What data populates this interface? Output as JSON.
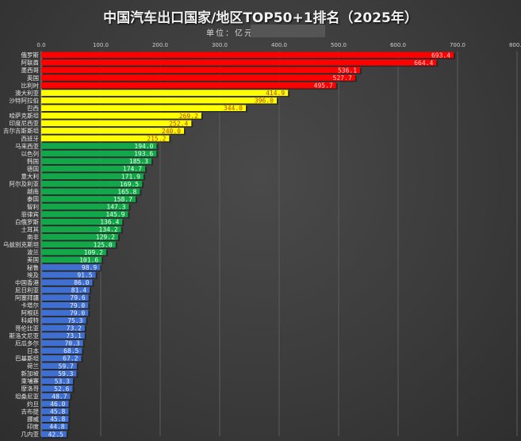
{
  "chart_data": {
    "type": "bar",
    "orientation": "horizontal",
    "title": "中国汽车出口国家/地区TOP50+1排名（2025年）",
    "subtitle": "单位：亿元",
    "xlim": [
      0,
      800
    ],
    "xticks": [
      "0.0",
      "100.0",
      "200.0",
      "300.0",
      "400.0",
      "500.0",
      "600.0",
      "700.0",
      "800.0"
    ],
    "grid": true,
    "categories": [
      "俄罗斯",
      "阿联酋",
      "墨西哥",
      "英国",
      "比利时",
      "澳大利亚",
      "沙特阿拉伯",
      "巴西",
      "哈萨克斯坦",
      "印度尼西亚",
      "吉尔吉斯斯坦",
      "西班牙",
      "马来西亚",
      "以色列",
      "韩国",
      "德国",
      "意大利",
      "阿尔及利亚",
      "越南",
      "泰国",
      "智利",
      "菲律宾",
      "白俄罗斯",
      "土耳其",
      "南非",
      "乌兹别克斯坦",
      "波兰",
      "美国",
      "秘鲁",
      "埃及",
      "中国香港",
      "尼日利亚",
      "阿塞拜疆",
      "卡塔尔",
      "阿根廷",
      "科威特",
      "哥伦比亚",
      "斯洛文尼亚",
      "厄瓜多尔",
      "日本",
      "巴基斯坦",
      "荷兰",
      "新加坡",
      "柬埔寨",
      "摩洛哥",
      "坦桑尼亚",
      "约旦",
      "吉布提",
      "挪威",
      "印度",
      "几内亚"
    ],
    "values": [
      693.4,
      664.4,
      536.1,
      527.7,
      495.7,
      414.9,
      396.0,
      344.0,
      269.2,
      252.4,
      240.0,
      215.2,
      194.0,
      193.6,
      185.3,
      174.7,
      171.9,
      169.5,
      165.8,
      158.7,
      147.3,
      145.9,
      136.4,
      134.2,
      129.2,
      125.0,
      109.2,
      101.6,
      98.9,
      91.5,
      86.0,
      81.4,
      79.6,
      79.0,
      79.0,
      75.3,
      73.2,
      73.1,
      70.3,
      68.5,
      67.2,
      59.7,
      59.3,
      53.3,
      52.6,
      48.7,
      46.0,
      45.8,
      45.8,
      44.8,
      42.5
    ],
    "color_groups": [
      {
        "count": 5,
        "color": "#ff0000",
        "label_color": "#ffd0d0"
      },
      {
        "count": 7,
        "color": "#ffff00",
        "label_color": "#c0400a"
      },
      {
        "count": 16,
        "color": "#12a84a",
        "label_color": "#e8ffe8"
      },
      {
        "count": 23,
        "color": "#3f6fd0",
        "label_color": "#e8eeff"
      }
    ]
  }
}
